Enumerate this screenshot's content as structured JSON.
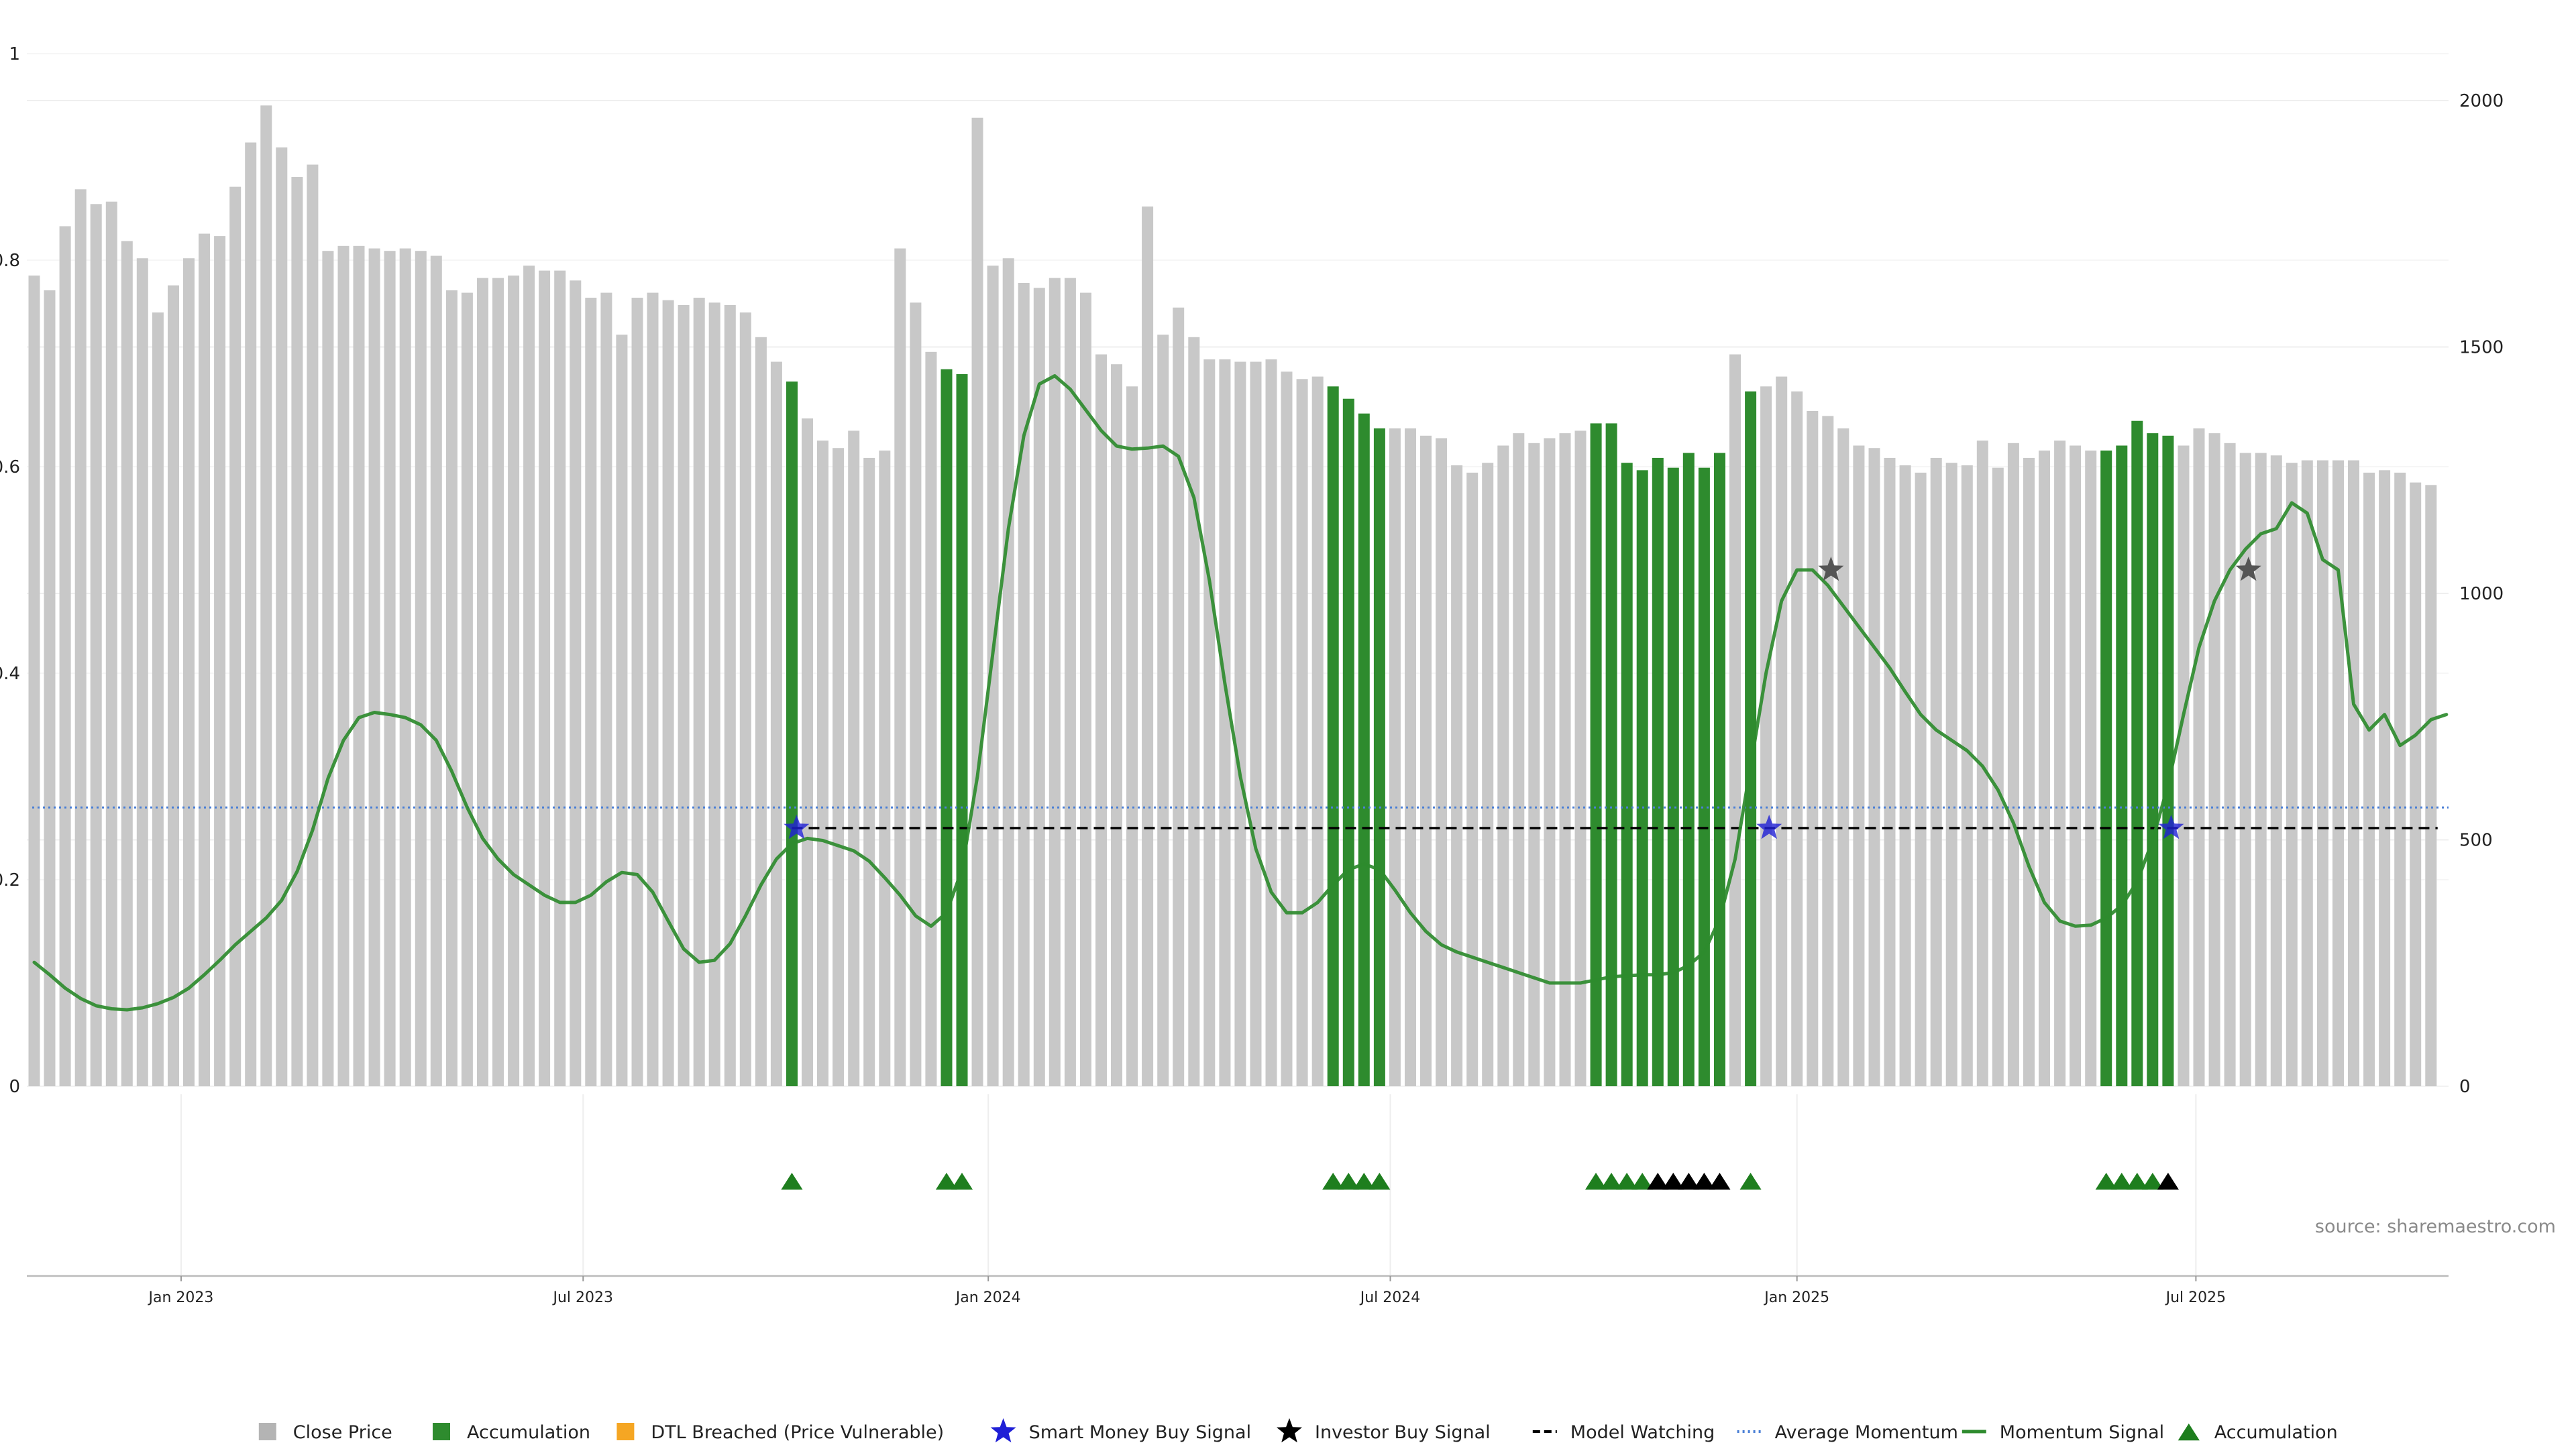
{
  "chart_data": {
    "type": "bar",
    "title": "",
    "source": "source: sharemaestro.com",
    "left_axis": {
      "range": [
        0,
        1
      ],
      "ticks": [
        "0",
        "0.2",
        "0.4",
        "0.6",
        "0.8",
        "1"
      ]
    },
    "right_axis": {
      "range": [
        0,
        2000
      ],
      "ticks": [
        "0",
        "500",
        "1000",
        "1500",
        "2000"
      ]
    },
    "x_ticks": [
      {
        "label": "Jan 2023",
        "week": 9.5
      },
      {
        "label": "Jul 2023",
        "week": 35.5
      },
      {
        "label": "Jan 2024",
        "week": 61.7
      },
      {
        "label": "Jul 2024",
        "week": 87.7
      },
      {
        "label": "Jan 2025",
        "week": 114.0
      },
      {
        "label": "Jul 2025",
        "week": 139.8
      }
    ],
    "grid": true,
    "legend_position": "bottom",
    "colors": {
      "close_price": "#c8c8c8",
      "accumulation": "#2e8b2e",
      "dtl": "#f5a623",
      "smart_money": "#1f1fd6",
      "investor": "#000000",
      "model_watching": "#000000",
      "average_momentum": "#4a7fd6",
      "momentum": "#2e8b2e",
      "accumulation_marker": "#1e7e1e"
    },
    "legend": [
      {
        "label": "Close Price",
        "symbol": "square",
        "color": "#b4b4b4"
      },
      {
        "label": "Accumulation",
        "symbol": "square",
        "color": "#2e8b2e"
      },
      {
        "label": "DTL Breached (Price Vulnerable)",
        "symbol": "square",
        "color": "#f5a623"
      },
      {
        "label": "Smart Money Buy Signal",
        "symbol": "star",
        "color": "#1f1fd6"
      },
      {
        "label": "Investor Buy Signal",
        "symbol": "star",
        "color": "#000000"
      },
      {
        "label": "Model Watching",
        "symbol": "dash",
        "color": "#000000"
      },
      {
        "label": "Average Momentum",
        "symbol": "dot",
        "color": "#4a7fd6"
      },
      {
        "label": "Momentum Signal",
        "symbol": "line",
        "color": "#2e8b2e"
      },
      {
        "label": "Accumulation",
        "symbol": "triangle",
        "color": "#1e7e1e"
      }
    ],
    "close_price": [
      1645,
      1615,
      1745,
      1820,
      1790,
      1795,
      1715,
      1680,
      1570,
      1625,
      1680,
      1730,
      1725,
      1825,
      1915,
      1990,
      1905,
      1845,
      1870,
      1695,
      1705,
      1705,
      1700,
      1695,
      1700,
      1695,
      1685,
      1615,
      1610,
      1640,
      1640,
      1645,
      1665,
      1655,
      1655,
      1635,
      1600,
      1610,
      1525,
      1600,
      1610,
      1595,
      1585,
      1600,
      1590,
      1585,
      1570,
      1520,
      1470,
      1430,
      1355,
      1310,
      1295,
      1330,
      1275,
      1290,
      1700,
      1590,
      1490,
      1455,
      1445,
      1965,
      1665,
      1680,
      1630,
      1620,
      1640,
      1640,
      1610,
      1485,
      1465,
      1420,
      1785,
      1525,
      1580,
      1520,
      1475,
      1475,
      1470,
      1470,
      1475,
      1450,
      1435,
      1440,
      1420,
      1395,
      1365,
      1335,
      1335,
      1335,
      1320,
      1315,
      1260,
      1245,
      1265,
      1300,
      1325,
      1305,
      1315,
      1325,
      1330,
      1345,
      1345,
      1265,
      1250,
      1275,
      1255,
      1285,
      1255,
      1285,
      1485,
      1410,
      1420,
      1440,
      1410,
      1370,
      1360,
      1335,
      1300,
      1295,
      1275,
      1260,
      1245,
      1275,
      1265,
      1260,
      1310,
      1255,
      1305,
      1275,
      1290,
      1310,
      1300,
      1290,
      1290,
      1300,
      1350,
      1325,
      1320,
      1300,
      1335,
      1325,
      1305,
      1285,
      1285,
      1280,
      1265,
      1270,
      1270,
      1270,
      1270,
      1245,
      1250,
      1245,
      1225,
      1220
    ],
    "accumulation_weeks": [
      49,
      59,
      60,
      84,
      85,
      86,
      87,
      101,
      102,
      103,
      104,
      105,
      106,
      107,
      108,
      109,
      111,
      134,
      135,
      136,
      137,
      138
    ],
    "momentum_signal": [
      0.12,
      0.108,
      0.095,
      0.085,
      0.078,
      0.075,
      0.074,
      0.076,
      0.08,
      0.086,
      0.095,
      0.108,
      0.122,
      0.137,
      0.15,
      0.163,
      0.18,
      0.208,
      0.248,
      0.298,
      0.335,
      0.357,
      0.362,
      0.36,
      0.357,
      0.35,
      0.335,
      0.305,
      0.27,
      0.24,
      0.22,
      0.205,
      0.195,
      0.185,
      0.178,
      0.178,
      0.185,
      0.198,
      0.207,
      0.205,
      0.188,
      0.16,
      0.133,
      0.12,
      0.122,
      0.138,
      0.165,
      0.195,
      0.22,
      0.235,
      0.24,
      0.238,
      0.233,
      0.228,
      0.218,
      0.202,
      0.185,
      0.165,
      0.155,
      0.168,
      0.21,
      0.3,
      0.42,
      0.54,
      0.63,
      0.68,
      0.688,
      0.675,
      0.655,
      0.635,
      0.62,
      0.617,
      0.618,
      0.62,
      0.61,
      0.57,
      0.49,
      0.39,
      0.3,
      0.23,
      0.188,
      0.168,
      0.168,
      0.178,
      0.195,
      0.21,
      0.215,
      0.21,
      0.19,
      0.168,
      0.15,
      0.137,
      0.13,
      0.125,
      0.12,
      0.115,
      0.11,
      0.105,
      0.1,
      0.1,
      0.1,
      0.103,
      0.106,
      0.107,
      0.108,
      0.108,
      0.11,
      0.117,
      0.13,
      0.162,
      0.22,
      0.31,
      0.4,
      0.47,
      0.5,
      0.5,
      0.485,
      0.465,
      0.445,
      0.425,
      0.405,
      0.382,
      0.36,
      0.345,
      0.335,
      0.325,
      0.31,
      0.287,
      0.255,
      0.213,
      0.178,
      0.16,
      0.155,
      0.156,
      0.163,
      0.175,
      0.198,
      0.238,
      0.292,
      0.36,
      0.425,
      0.47,
      0.5,
      0.52,
      0.535,
      0.54,
      0.565,
      0.555,
      0.51,
      0.5,
      0.37,
      0.345,
      0.36,
      0.33,
      0.34,
      0.355,
      0.36
    ],
    "average_momentum": 0.27,
    "model_watching": {
      "level": 0.25,
      "start_week": 49,
      "end_week": 155
    },
    "smart_money_signals": [
      {
        "week": 49.3,
        "value": 0.25
      },
      {
        "week": 112.2,
        "value": 0.25
      },
      {
        "week": 138.2,
        "value": 0.25
      }
    ],
    "investor_signals": [
      {
        "week": 116.2,
        "value": 0.5
      },
      {
        "week": 143.2,
        "value": 0.5
      }
    ],
    "accumulation_markers": [
      {
        "week": 49,
        "color": "green"
      },
      {
        "week": 59,
        "color": "green"
      },
      {
        "week": 60,
        "color": "green"
      },
      {
        "week": 84,
        "color": "green"
      },
      {
        "week": 85,
        "color": "green"
      },
      {
        "week": 86,
        "color": "green"
      },
      {
        "week": 87,
        "color": "green"
      },
      {
        "week": 101,
        "color": "green"
      },
      {
        "week": 102,
        "color": "green"
      },
      {
        "week": 103,
        "color": "green"
      },
      {
        "week": 104,
        "color": "green"
      },
      {
        "week": 105,
        "color": "black"
      },
      {
        "week": 106,
        "color": "black"
      },
      {
        "week": 107,
        "color": "black"
      },
      {
        "week": 108,
        "color": "black"
      },
      {
        "week": 109,
        "color": "black"
      },
      {
        "week": 111,
        "color": "green"
      },
      {
        "week": 134,
        "color": "green"
      },
      {
        "week": 135,
        "color": "green"
      },
      {
        "week": 136,
        "color": "green"
      },
      {
        "week": 137,
        "color": "green"
      },
      {
        "week": 138,
        "color": "black"
      }
    ]
  }
}
